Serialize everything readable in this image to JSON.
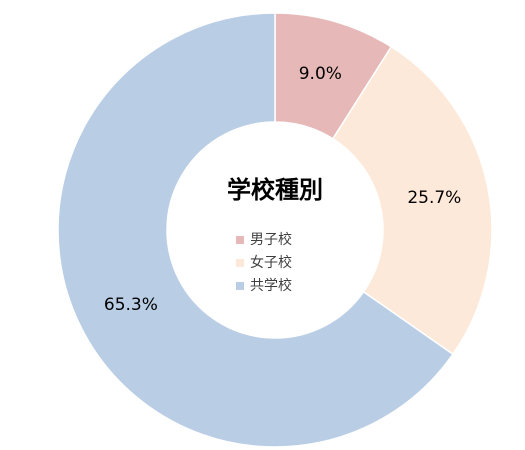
{
  "chart_data": {
    "type": "donut",
    "title": "学校種別",
    "categories": [
      "男子校",
      "女子校",
      "共学校"
    ],
    "values": [
      9.0,
      25.7,
      65.3
    ],
    "value_labels": [
      "9.0%",
      "25.7%",
      "65.3%"
    ],
    "colors": [
      "#e6b9b8",
      "#fde9d9",
      "#b9cde5"
    ]
  }
}
